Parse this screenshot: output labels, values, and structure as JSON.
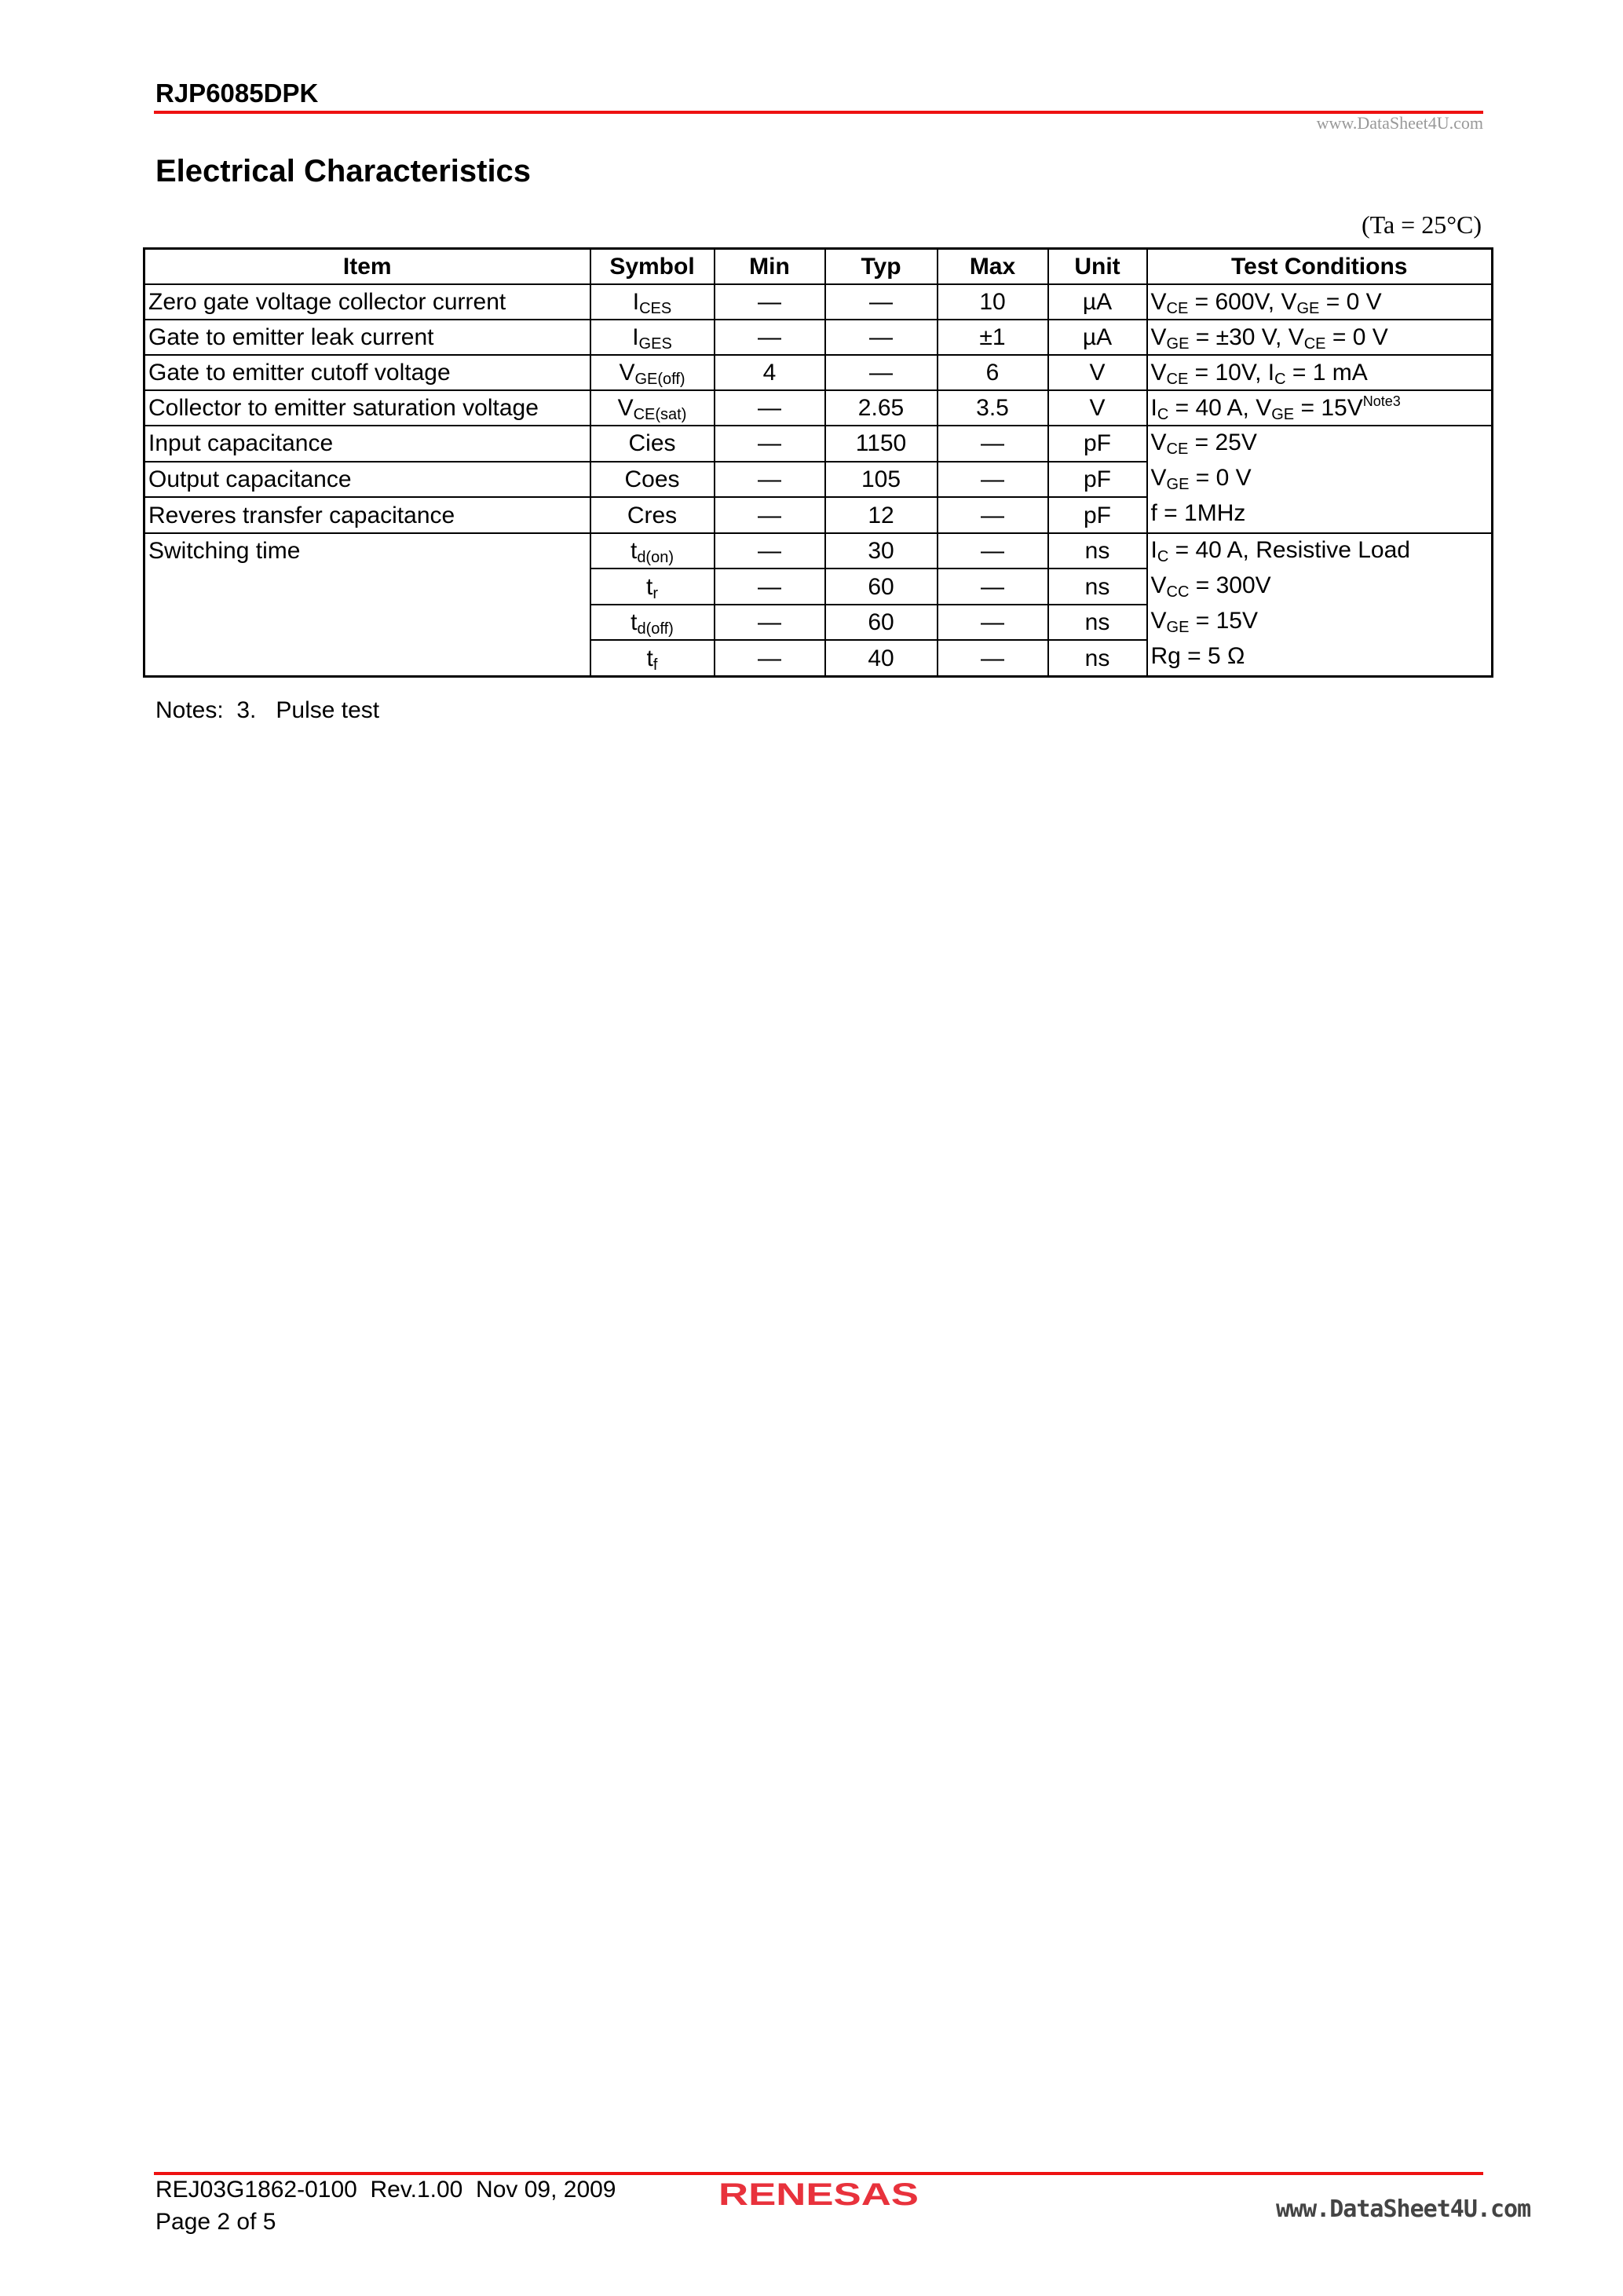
{
  "header": {
    "part_number": "RJP6085DPK",
    "watermark": "www.DataSheet4U.com"
  },
  "section_title": "Electrical Characteristics",
  "condition": "(Ta = 25°C)",
  "table": {
    "columns": [
      "Item",
      "Symbol",
      "Min",
      "Typ",
      "Max",
      "Unit",
      "Test Conditions"
    ],
    "rows": [
      {
        "item": "Zero gate voltage collector current",
        "sym": "I",
        "sym_sub": "CES",
        "min": "—",
        "typ": "—",
        "max": "10",
        "unit": "µA"
      },
      {
        "item": "Gate to emitter leak current",
        "sym": "I",
        "sym_sub": "GES",
        "min": "—",
        "typ": "—",
        "max": "±1",
        "unit": "µA"
      },
      {
        "item": "Gate to emitter cutoff voltage",
        "sym": "V",
        "sym_sub": "GE(off)",
        "min": "4",
        "typ": "—",
        "max": "6",
        "unit": "V"
      },
      {
        "item": "Collector to emitter saturation voltage",
        "sym": "V",
        "sym_sub": "CE(sat)",
        "min": "—",
        "typ": "2.65",
        "max": "3.5",
        "unit": "V"
      },
      {
        "item": "Input capacitance",
        "sym": "Cies",
        "min": "—",
        "typ": "1150",
        "max": "—",
        "unit": "pF"
      },
      {
        "item": "Output capacitance",
        "sym": "Coes",
        "min": "—",
        "typ": "105",
        "max": "—",
        "unit": "pF"
      },
      {
        "item": "Reveres transfer capacitance",
        "sym": "Cres",
        "min": "—",
        "typ": "12",
        "max": "—",
        "unit": "pF"
      },
      {
        "item": "Switching time",
        "sym": "t",
        "sym_sub": "d(on)",
        "min": "—",
        "typ": "30",
        "max": "—",
        "unit": "ns"
      },
      {
        "sym": "t",
        "sym_sub": "r",
        "min": "—",
        "typ": "60",
        "max": "—",
        "unit": "ns"
      },
      {
        "sym": "t",
        "sym_sub": "d(off)",
        "min": "—",
        "typ": "60",
        "max": "—",
        "unit": "ns"
      },
      {
        "sym": "t",
        "sym_sub": "f",
        "min": "—",
        "typ": "40",
        "max": "—",
        "unit": "ns"
      }
    ],
    "conditions": {
      "c1": {
        "a": "V",
        "a_sub": "CE",
        "b": " = 600V, V",
        "b_sub": "GE",
        "c": " = 0 V"
      },
      "c2": {
        "a": "V",
        "a_sub": "GE",
        "b": " = ±30 V, V",
        "b_sub": "CE",
        "c": " = 0 V"
      },
      "c3": {
        "a": "V",
        "a_sub": "CE",
        "b": " = 10V, I",
        "b_sub": "C",
        "c": " = 1 mA"
      },
      "c4": {
        "a": "I",
        "a_sub": "C",
        "b": " = 40 A, V",
        "b_sub": "GE",
        "c": " = 15V",
        "note": "Note3"
      },
      "cap": [
        {
          "a": "V",
          "a_sub": "CE",
          "b": " = 25V"
        },
        {
          "a": "V",
          "a_sub": "GE",
          "b": " = 0 V"
        },
        {
          "a": "f = 1MHz"
        }
      ],
      "sw": [
        {
          "a": "I",
          "a_sub": "C",
          "b": " = 40 A, Resistive Load"
        },
        {
          "a": "V",
          "a_sub": "CC",
          "b": " = 300V"
        },
        {
          "a": "V",
          "a_sub": "GE",
          "b": " = 15V"
        },
        {
          "a": "Rg = 5 Ω"
        }
      ]
    }
  },
  "notes": "Notes:  3.   Pulse test",
  "footer": {
    "doc": "REJ03G1862-0100  Rev.1.00  Nov 09, 2009",
    "page": "Page 2 of 5",
    "logo": "RENESAS",
    "watermark": "www.DataSheet4U.com"
  },
  "colors": {
    "rule": "#ee1111",
    "logo": "#e8323c"
  }
}
